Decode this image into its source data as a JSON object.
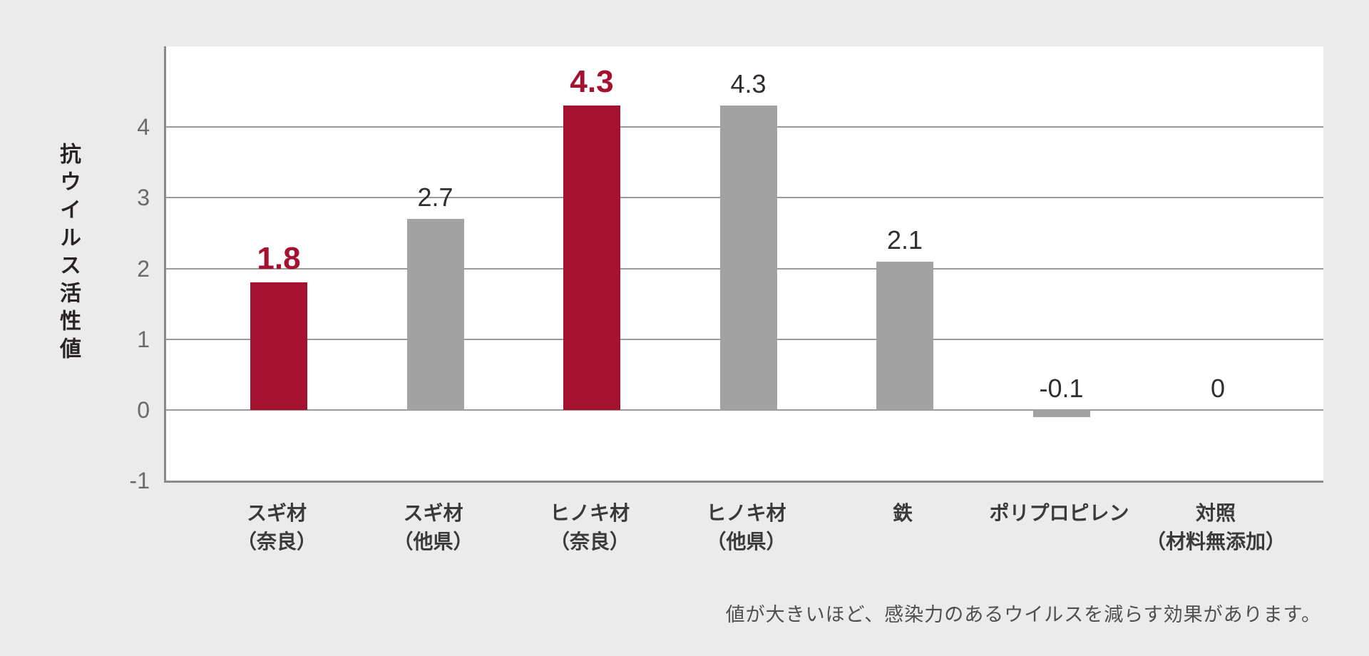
{
  "chart_data": {
    "type": "bar",
    "title": "",
    "ylabel": "抗ウイルス活性値",
    "xlabel": "",
    "categories": [
      "スギ材（奈良）",
      "スギ材（他県）",
      "ヒノキ材（奈良）",
      "ヒノキ材（他県）",
      "鉄",
      "ポリプロピレン",
      "対照（材料無添加）"
    ],
    "category_label_lines": [
      [
        "スギ材",
        "（奈良）"
      ],
      [
        "スギ材",
        "（他県）"
      ],
      [
        "ヒノキ材",
        "（奈良）"
      ],
      [
        "ヒノキ材",
        "（他県）"
      ],
      [
        "鉄"
      ],
      [
        "ポリプロピレン"
      ],
      [
        "対照",
        "（材料無添加）"
      ]
    ],
    "values": [
      1.8,
      2.7,
      4.3,
      4.3,
      2.1,
      -0.1,
      0
    ],
    "value_labels": [
      "1.8",
      "2.7",
      "4.3",
      "4.3",
      "2.1",
      "-0.1",
      "0"
    ],
    "highlighted": [
      true,
      false,
      true,
      false,
      false,
      false,
      false
    ],
    "yticks": [
      4,
      3,
      2,
      1,
      0,
      -1
    ],
    "ylim": [
      -1,
      5.15
    ],
    "grid": "on",
    "legend": "none",
    "footnote": "値が大きいほど、感染力のあるウイルスを減らす効果があります。",
    "colors": {
      "highlight_bar": "#a41230",
      "default_bar": "#a2a2a2",
      "background": "#ecebeb",
      "plot_background": "#ffffff",
      "gridline": "#9b9b9b",
      "axis_line": "#8a8a8a",
      "tick_text": "#6a6a6a",
      "category_text": "#3a3a3a",
      "value_text": "#322e2c",
      "footnote_text": "#4f4f4f"
    }
  }
}
